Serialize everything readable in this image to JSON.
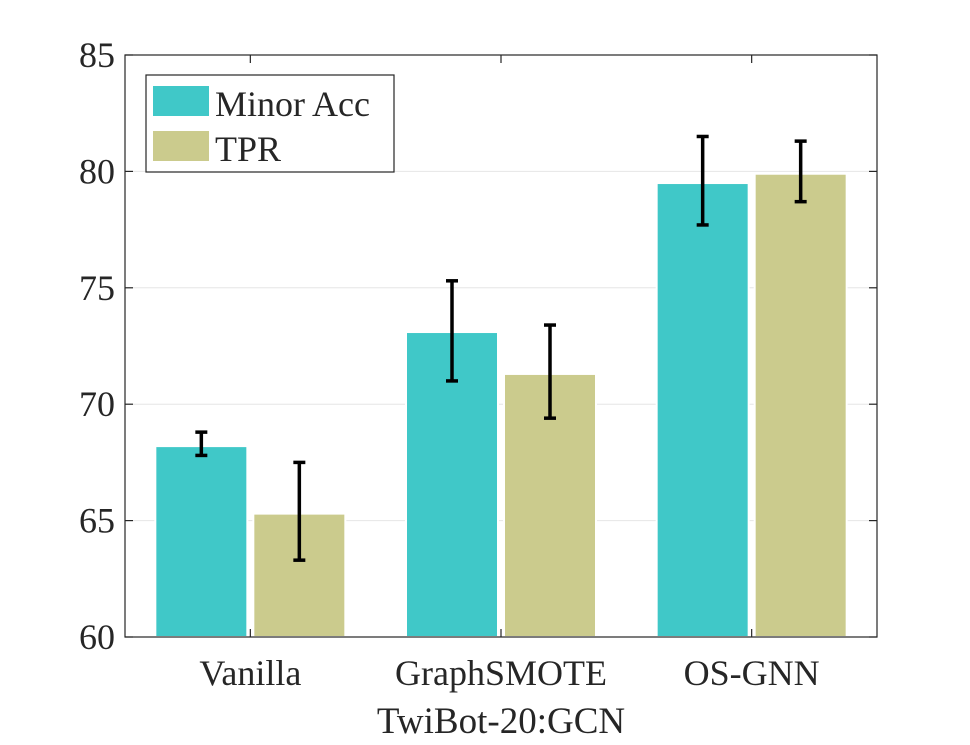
{
  "chart_data": {
    "type": "bar",
    "title": "",
    "xlabel": "TwiBot-20:GCN",
    "ylabel": "",
    "categories": [
      "Vanilla",
      "GraphSMOTE",
      "OS-GNN"
    ],
    "ylim": [
      60,
      85
    ],
    "yticks": [
      60,
      65,
      70,
      75,
      80,
      85
    ],
    "grid": true,
    "legend_position": "top-left",
    "series": [
      {
        "name": "Minor Acc",
        "color": "#40C8C8",
        "values": [
          68.2,
          73.1,
          79.5
        ],
        "error_low": [
          67.8,
          71.0,
          77.7
        ],
        "error_high": [
          68.8,
          75.3,
          81.5
        ]
      },
      {
        "name": "TPR",
        "color": "#CBCB8D",
        "values": [
          65.3,
          71.3,
          79.9
        ],
        "error_low": [
          63.3,
          69.4,
          78.7
        ],
        "error_high": [
          67.5,
          73.4,
          81.3
        ]
      }
    ]
  }
}
